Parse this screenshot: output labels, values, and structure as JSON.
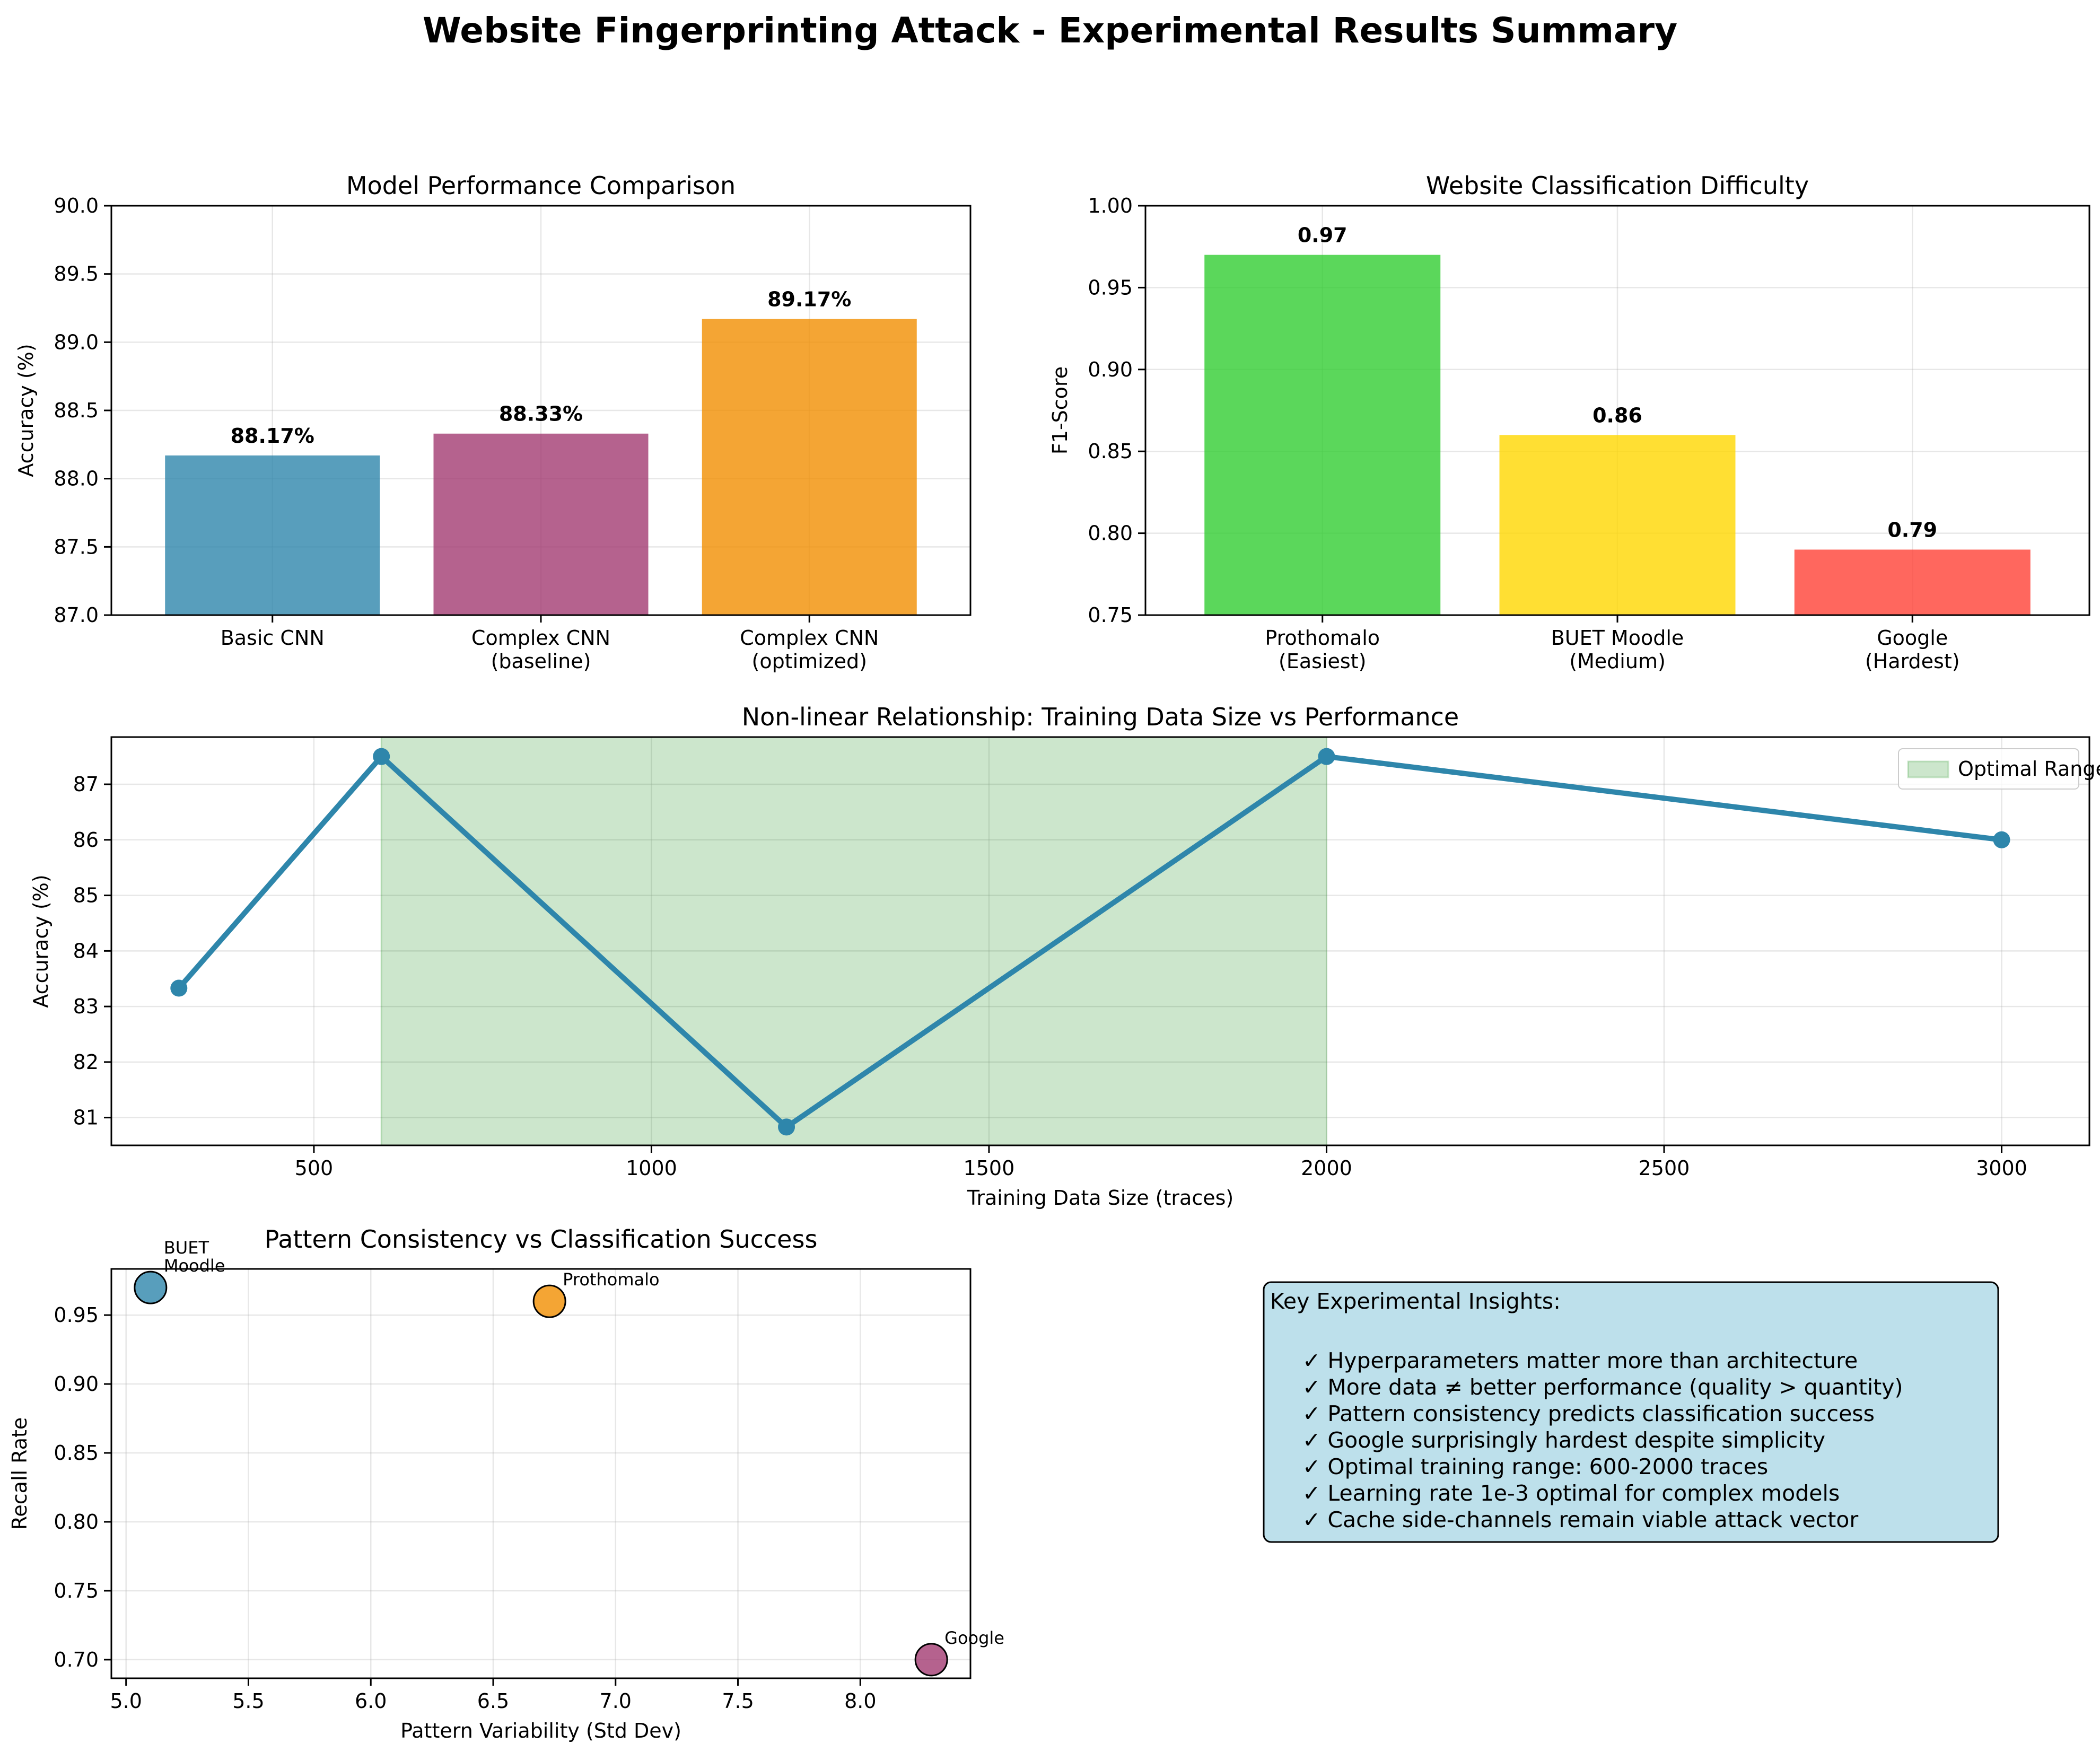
{
  "figure": {
    "title": "Website Fingerprinting Attack - Experimental Results Summary"
  },
  "chart_data": [
    {
      "type": "bar",
      "title": "Model Performance Comparison",
      "xlabel": "",
      "ylabel": "Accuracy (%)",
      "categories": [
        [
          "Basic CNN"
        ],
        [
          "Complex CNN",
          "(baseline)"
        ],
        [
          "Complex CNN",
          "(optimized)"
        ]
      ],
      "values": [
        88.17,
        88.33,
        89.17
      ],
      "value_labels": [
        "88.17%",
        "88.33%",
        "89.17%"
      ],
      "colors": [
        "#2E86AB",
        "#A23B72",
        "#F18F01"
      ],
      "ylim": [
        87.0,
        90.0
      ],
      "yticks": [
        87.0,
        87.5,
        88.0,
        88.5,
        89.0,
        89.5,
        90.0
      ],
      "ytick_labels": [
        "87.0",
        "87.5",
        "88.0",
        "88.5",
        "89.0",
        "89.5",
        "90.0"
      ],
      "grid": true
    },
    {
      "type": "bar",
      "title": "Website Classification Difficulty",
      "xlabel": "",
      "ylabel": "F1-Score",
      "categories": [
        [
          "Prothomalo",
          "(Easiest)"
        ],
        [
          "BUET Moodle",
          "(Medium)"
        ],
        [
          "Google",
          "(Hardest)"
        ]
      ],
      "values": [
        0.97,
        0.86,
        0.79
      ],
      "value_labels": [
        "0.97",
        "0.86",
        "0.79"
      ],
      "colors": [
        "#32CD32",
        "#FFD700",
        "#FF4136"
      ],
      "ylim": [
        0.75,
        1.0
      ],
      "yticks": [
        0.75,
        0.8,
        0.85,
        0.9,
        0.95,
        1.0
      ],
      "ytick_labels": [
        "0.75",
        "0.80",
        "0.85",
        "0.90",
        "0.95",
        "1.00"
      ],
      "grid": true
    },
    {
      "type": "line",
      "title": "Non-linear Relationship: Training Data Size vs Performance",
      "xlabel": "Training Data Size (traces)",
      "ylabel": "Accuracy (%)",
      "x": [
        300,
        600,
        1200,
        2000,
        3000
      ],
      "y": [
        83.33,
        87.5,
        80.83,
        87.5,
        86.0
      ],
      "color": "#2E86AB",
      "xlim": [
        200,
        3130
      ],
      "ylim": [
        80.5,
        87.85
      ],
      "xticks": [
        500,
        1000,
        1500,
        2000,
        2500,
        3000
      ],
      "yticks": [
        81,
        82,
        83,
        84,
        85,
        86,
        87
      ],
      "shaded_range": {
        "x": [
          600,
          2000
        ],
        "label": "Optimal Range",
        "color": "green"
      },
      "legend": {
        "placement": "top-right",
        "entries": [
          "Optimal Range"
        ]
      },
      "grid": true
    },
    {
      "type": "scatter",
      "title": "Pattern Consistency vs Classification Success",
      "xlabel": "Pattern Variability (Std Dev)",
      "ylabel": "Recall Rate",
      "points": [
        {
          "x": 5.1,
          "y": 0.97,
          "label": [
            "BUET",
            "Moodle"
          ],
          "color": "#2E86AB"
        },
        {
          "x": 6.73,
          "y": 0.96,
          "label": [
            "Prothomalo"
          ],
          "color": "#F18F01"
        },
        {
          "x": 8.29,
          "y": 0.7,
          "label": [
            "Google"
          ],
          "color": "#A23B72"
        }
      ],
      "xlim": [
        4.94,
        8.45
      ],
      "ylim": [
        0.6865,
        0.9835
      ],
      "xticks": [
        5.0,
        5.5,
        6.0,
        6.5,
        7.0,
        7.5,
        8.0
      ],
      "xtick_labels": [
        "5.0",
        "5.5",
        "6.0",
        "6.5",
        "7.0",
        "7.5",
        "8.0"
      ],
      "yticks": [
        0.7,
        0.75,
        0.8,
        0.85,
        0.9,
        0.95
      ],
      "ytick_labels": [
        "0.70",
        "0.75",
        "0.80",
        "0.85",
        "0.90",
        "0.95"
      ],
      "grid": true
    }
  ],
  "insights": {
    "title": "Key Experimental Insights:",
    "items": [
      "✓ Hyperparameters matter more than architecture",
      "✓ More data ≠ better performance (quality > quantity)",
      "✓ Pattern consistency predicts classification success",
      "✓ Google surprisingly hardest despite simplicity",
      "✓ Optimal training range: 600-2000 traces",
      "✓ Learning rate 1e-3 optimal for complex models",
      "✓ Cache side-channels remain viable attack vector"
    ]
  }
}
